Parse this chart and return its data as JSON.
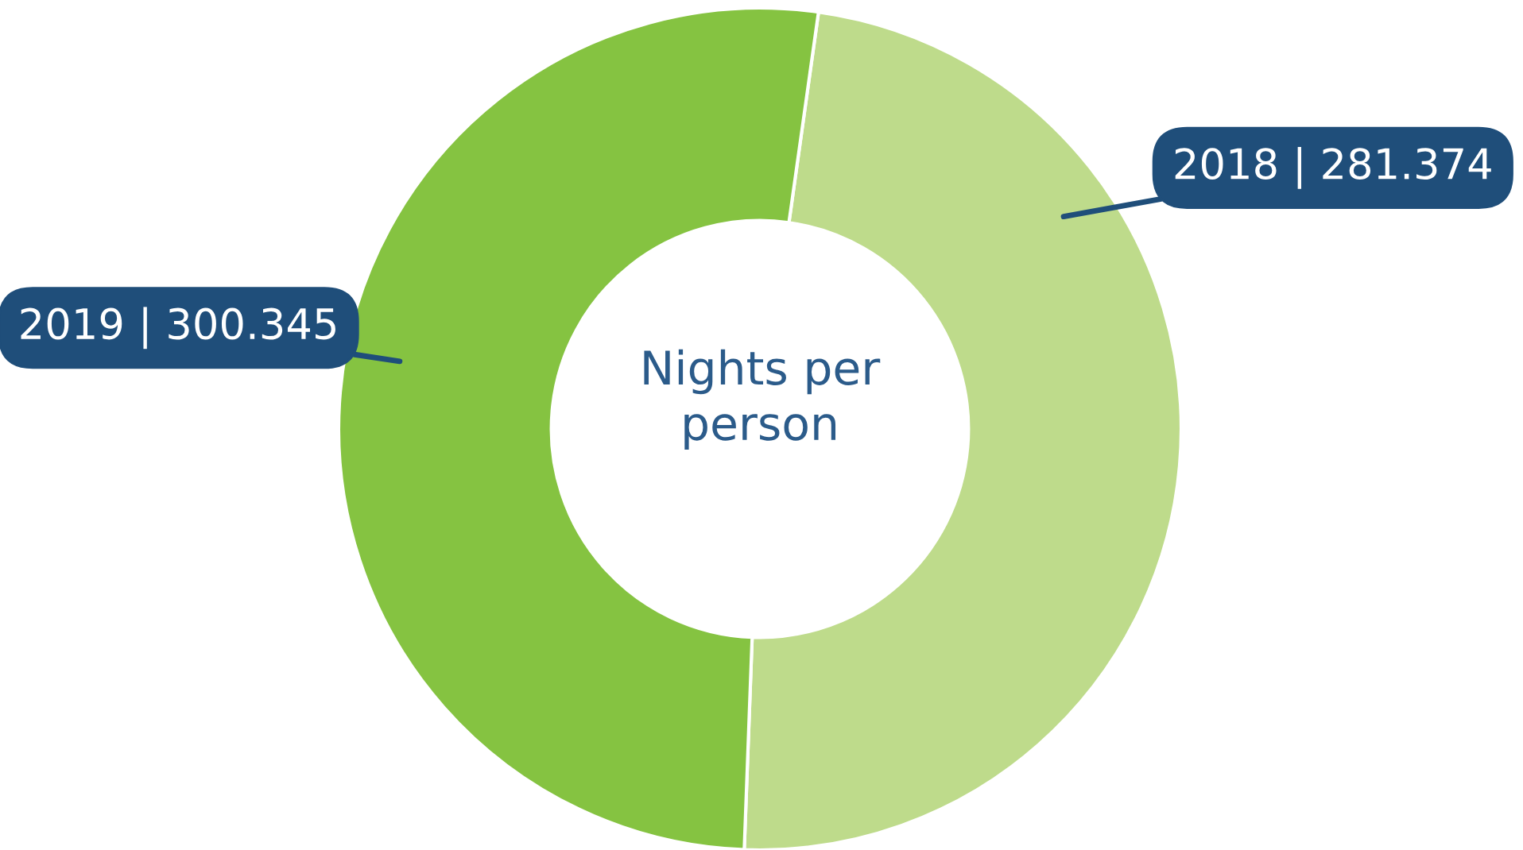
{
  "chart_data": {
    "type": "donut",
    "categories": [
      "2018 | 281.374",
      "2019 | 300.345"
    ],
    "values": [
      281.374,
      300.345
    ],
    "colors": [
      "#bedb8b",
      "#85c341"
    ],
    "annotations": [
      "Nights per person"
    ]
  }
}
